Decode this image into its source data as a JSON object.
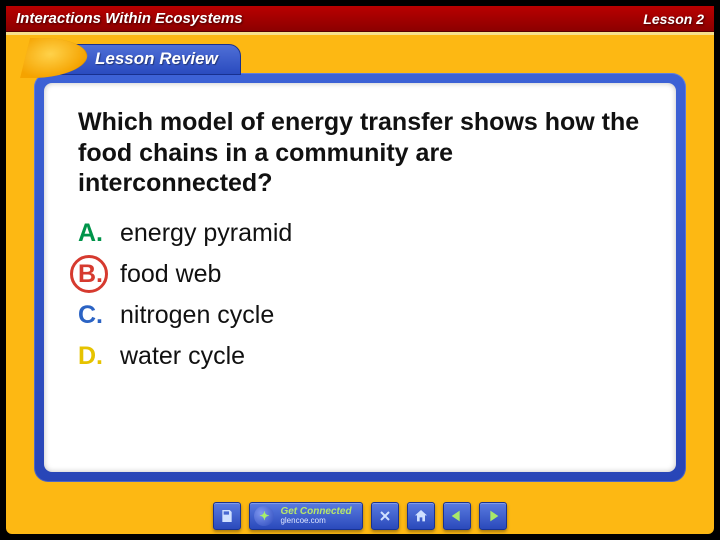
{
  "header": {
    "title": "Interactions Within Ecosystems",
    "lesson_label": "Lesson 2",
    "bar_gradient_top": "#b90000",
    "bar_gradient_bottom": "#8c0000"
  },
  "tab": {
    "label": "Lesson Review",
    "bg_top": "#4f6fd6",
    "bg_bottom": "#2a4bbf"
  },
  "frame": {
    "outer_bg": "#fdb813",
    "panel_gradient_top": "#3d62d6",
    "panel_gradient_bottom": "#2845b7",
    "inner_bg": "#ffffff"
  },
  "content": {
    "question_text": "Which model of energy transfer shows how the food chains in a community are interconnected?",
    "question_color": "#111111",
    "question_fontsize": 25,
    "options": [
      {
        "letter": "A.",
        "text": "energy pyramid",
        "color": "#00944a",
        "correct": false
      },
      {
        "letter": "B.",
        "text": "food web",
        "color": "#d63a2f",
        "correct": true
      },
      {
        "letter": "C.",
        "text": "nitrogen cycle",
        "color": "#2b63c4",
        "correct": false
      },
      {
        "letter": "D.",
        "text": "water cycle",
        "color": "#e6c300",
        "correct": false
      }
    ],
    "correct_circle_color": "#d63a2f"
  },
  "footer": {
    "get_connected_title": "Get Connected",
    "get_connected_url": "glencoe.com",
    "buttons": {
      "save": "save-icon",
      "close": "close-icon",
      "home": "home-icon",
      "prev": "prev-icon",
      "next": "next-icon"
    },
    "button_bg_top": "#5a7be0",
    "button_bg_bottom": "#2a49bb"
  }
}
